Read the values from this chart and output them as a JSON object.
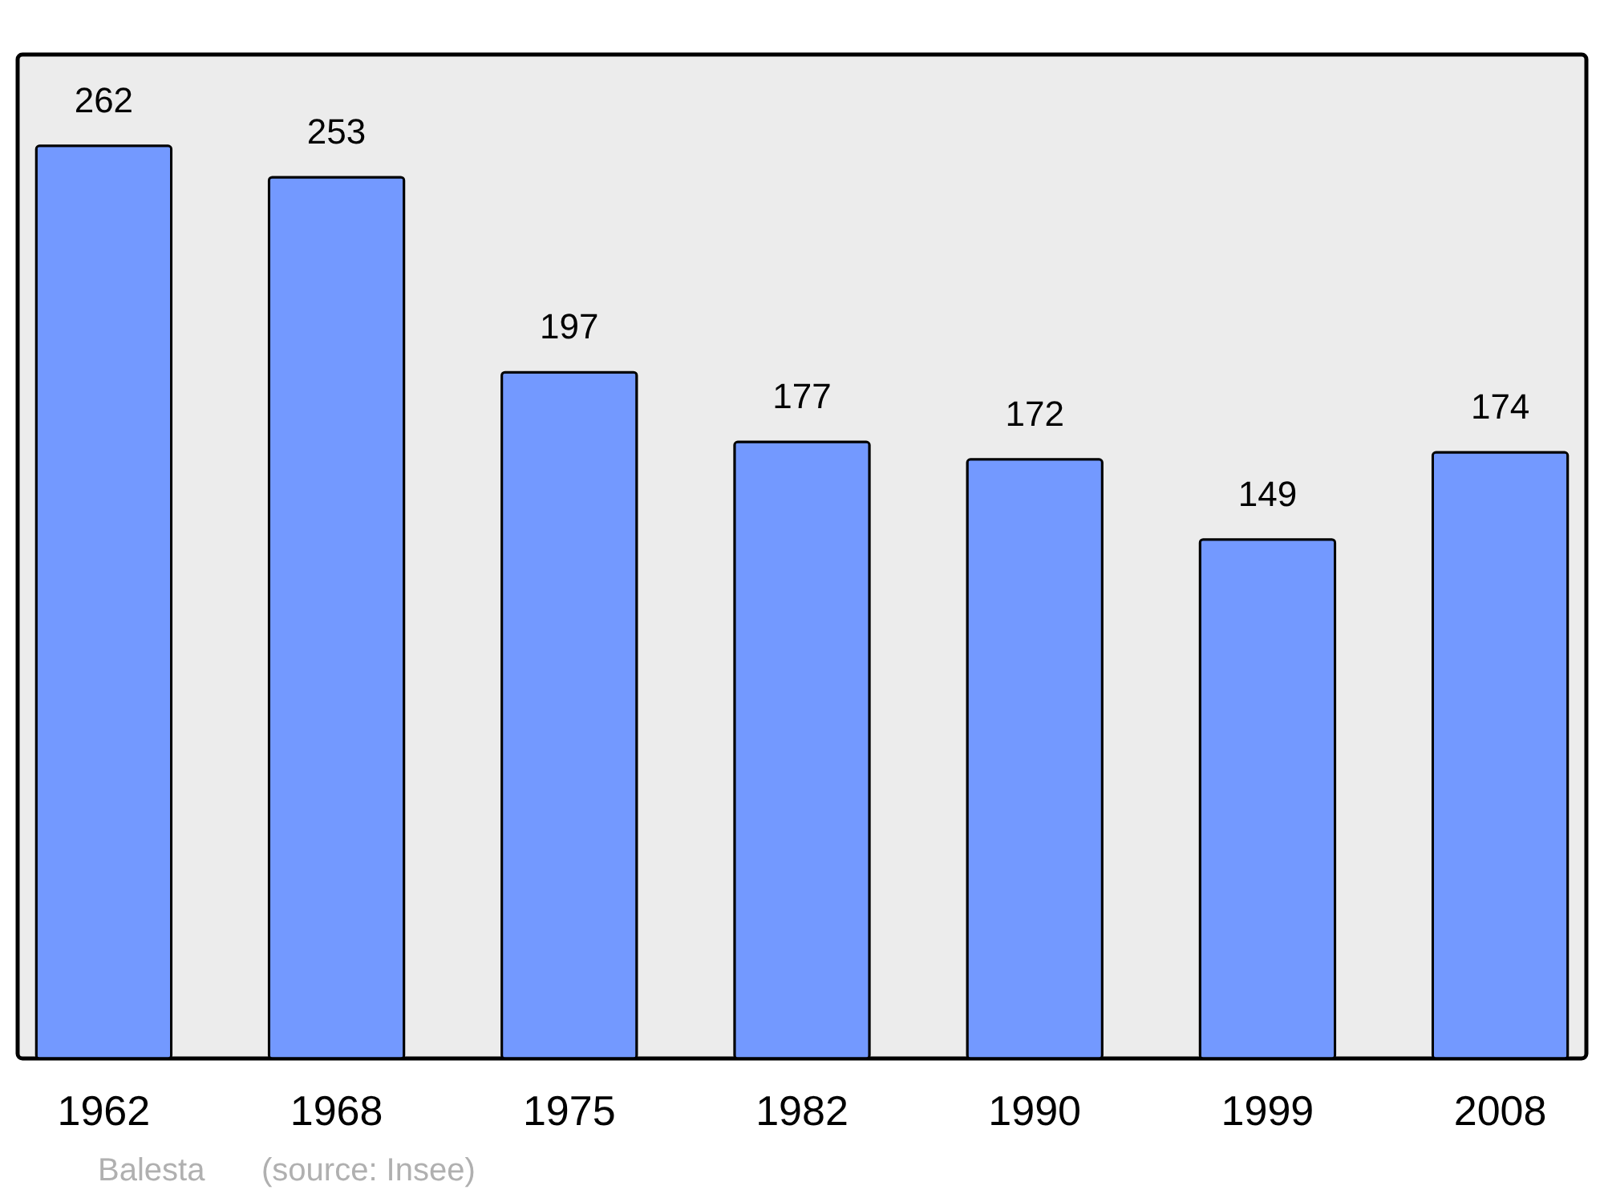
{
  "chart_data": {
    "type": "bar",
    "categories": [
      "1962",
      "1968",
      "1975",
      "1982",
      "1990",
      "1999",
      "2008"
    ],
    "values": [
      262,
      253,
      197,
      177,
      172,
      149,
      174
    ],
    "color": "#7399ff",
    "data_labels": true,
    "annotations": [
      "Balesta",
      "(source: Insee)"
    ]
  }
}
